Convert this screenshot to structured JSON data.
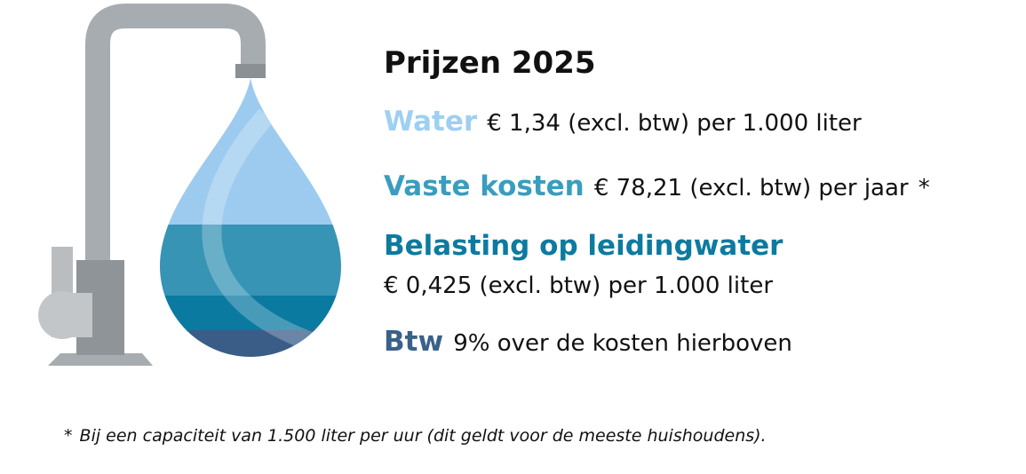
{
  "title": "Prijzen 2025",
  "items": [
    {
      "label": "Water",
      "text": "€ 1,34 (excl. btw) per 1.000 liter"
    },
    {
      "label": "Vaste kosten",
      "text": "€ 78,21 (excl. btw) per jaar",
      "mark": "*"
    },
    {
      "label": "Belasting op leidingwater",
      "text": "€ 0,425 (excl. btw) per 1.000 liter"
    },
    {
      "label": "Btw",
      "text": "9% over de kosten hierboven"
    }
  ],
  "footnote": {
    "mark": "*",
    "text": "Bij een capaciteit van 1.500 liter per uur (dit geldt voor de meeste huishoudens)."
  }
}
